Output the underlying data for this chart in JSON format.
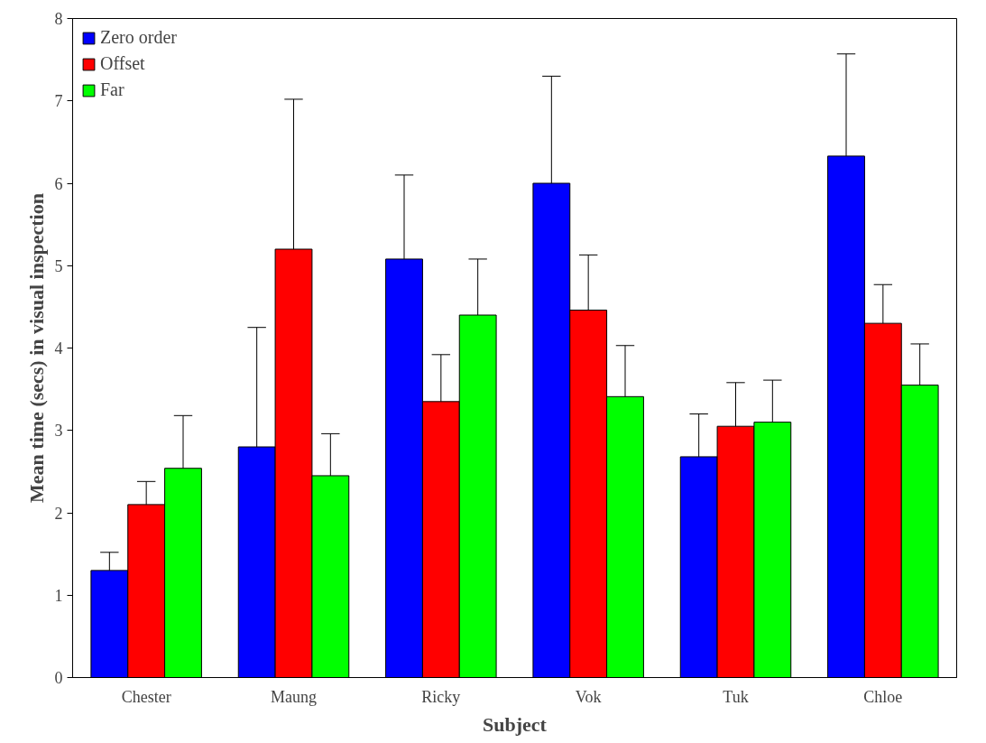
{
  "chart_data": {
    "type": "bar",
    "xlabel": "Subject",
    "ylabel": "Mean time (secs) in visual inspection",
    "categories": [
      "Chester",
      "Maung",
      "Ricky",
      "Vok",
      "Tuk",
      "Chloe"
    ],
    "series": [
      {
        "name": "Zero order",
        "color": "#0000ff",
        "values": [
          1.3,
          2.8,
          5.08,
          6.0,
          2.68,
          6.33
        ],
        "errors": [
          [
            1.3,
            1.52
          ],
          [
            2.8,
            4.25
          ],
          [
            5.08,
            6.1
          ],
          [
            6.0,
            7.3
          ],
          [
            2.68,
            3.2
          ],
          [
            6.33,
            7.57
          ]
        ]
      },
      {
        "name": "Offset",
        "color": "#ff0000",
        "values": [
          2.1,
          5.2,
          3.35,
          4.46,
          3.05,
          4.3
        ],
        "errors": [
          [
            2.1,
            2.38
          ],
          [
            5.2,
            7.02
          ],
          [
            3.35,
            3.92
          ],
          [
            4.46,
            5.13
          ],
          [
            3.05,
            3.58
          ],
          [
            4.3,
            4.77
          ]
        ]
      },
      {
        "name": "Far",
        "color": "#00ff00",
        "values": [
          2.54,
          2.45,
          4.4,
          3.41,
          3.1,
          3.55
        ],
        "errors": [
          [
            2.54,
            3.18
          ],
          [
            2.45,
            2.96
          ],
          [
            4.4,
            5.08
          ],
          [
            3.41,
            4.03
          ],
          [
            3.1,
            3.61
          ],
          [
            3.55,
            4.05
          ]
        ]
      }
    ],
    "ylim": [
      0,
      8
    ],
    "yticks": [
      0,
      1,
      2,
      3,
      4,
      5,
      6,
      7,
      8
    ],
    "grid": false,
    "legend": "top left"
  }
}
